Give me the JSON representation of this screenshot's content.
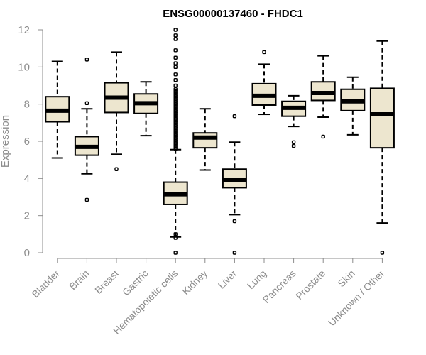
{
  "chart_data": {
    "type": "boxplot",
    "title": "ENSG00000137460 - FHDC1",
    "xlabel": "",
    "ylabel": "Expression",
    "ylim": [
      0,
      12
    ],
    "yticks": [
      0,
      2,
      4,
      6,
      8,
      10,
      12
    ],
    "colors": {
      "box_fill": "#ede6cf",
      "box_stroke": "#000000",
      "axis": "#8c8c8c"
    },
    "categories": [
      "Bladder",
      "Brain",
      "Breast",
      "Gastric",
      "Hematopoietic cells",
      "Kidney",
      "Liver",
      "Lung",
      "Pancreas",
      "Prostate",
      "Skin",
      "Unknown / Other"
    ],
    "boxes": [
      {
        "whisker_low": 5.1,
        "q1": 7.05,
        "median": 7.65,
        "q3": 8.4,
        "whisker_high": 10.3,
        "outliers": []
      },
      {
        "whisker_low": 4.25,
        "q1": 5.25,
        "median": 5.7,
        "q3": 6.25,
        "whisker_high": 7.75,
        "outliers": [
          2.85,
          8.05,
          10.4
        ]
      },
      {
        "whisker_low": 5.3,
        "q1": 7.55,
        "median": 8.35,
        "q3": 9.15,
        "whisker_high": 10.8,
        "outliers": [
          4.5
        ]
      },
      {
        "whisker_low": 6.3,
        "q1": 7.5,
        "median": 8.05,
        "q3": 8.55,
        "whisker_high": 9.2,
        "outliers": []
      },
      {
        "whisker_low": 0.85,
        "q1": 2.6,
        "median": 3.15,
        "q3": 3.8,
        "whisker_high": 5.55,
        "outliers": [
          0.0,
          0.8,
          1.0,
          5.6,
          5.7,
          5.8,
          5.9,
          6.0,
          6.1,
          6.2,
          6.3,
          6.4,
          6.5,
          6.6,
          6.7,
          6.8,
          6.9,
          7.0,
          7.1,
          7.2,
          7.3,
          7.4,
          7.5,
          7.6,
          7.7,
          7.8,
          7.9,
          8.0,
          8.1,
          8.2,
          8.3,
          8.4,
          8.5,
          8.6,
          8.7,
          8.8,
          9.0,
          9.3,
          9.6,
          10.0,
          10.2,
          10.5,
          10.9,
          11.5,
          11.7,
          12.0
        ]
      },
      {
        "whisker_low": 4.45,
        "q1": 5.65,
        "median": 6.2,
        "q3": 6.45,
        "whisker_high": 7.75,
        "outliers": []
      },
      {
        "whisker_low": 2.05,
        "q1": 3.5,
        "median": 3.9,
        "q3": 4.5,
        "whisker_high": 5.95,
        "outliers": [
          0.0,
          1.7,
          7.35
        ]
      },
      {
        "whisker_low": 7.45,
        "q1": 7.95,
        "median": 8.45,
        "q3": 9.1,
        "whisker_high": 10.15,
        "outliers": [
          10.8
        ]
      },
      {
        "whisker_low": 6.8,
        "q1": 7.35,
        "median": 7.8,
        "q3": 8.15,
        "whisker_high": 8.45,
        "outliers": [
          5.75,
          5.95
        ]
      },
      {
        "whisker_low": 7.3,
        "q1": 8.2,
        "median": 8.6,
        "q3": 9.2,
        "whisker_high": 10.6,
        "outliers": [
          6.25
        ]
      },
      {
        "whisker_low": 6.35,
        "q1": 7.65,
        "median": 8.15,
        "q3": 8.8,
        "whisker_high": 9.45,
        "outliers": []
      },
      {
        "whisker_low": 1.6,
        "q1": 5.65,
        "median": 7.45,
        "q3": 8.85,
        "whisker_high": 11.4,
        "outliers": [
          0.0
        ]
      }
    ]
  }
}
